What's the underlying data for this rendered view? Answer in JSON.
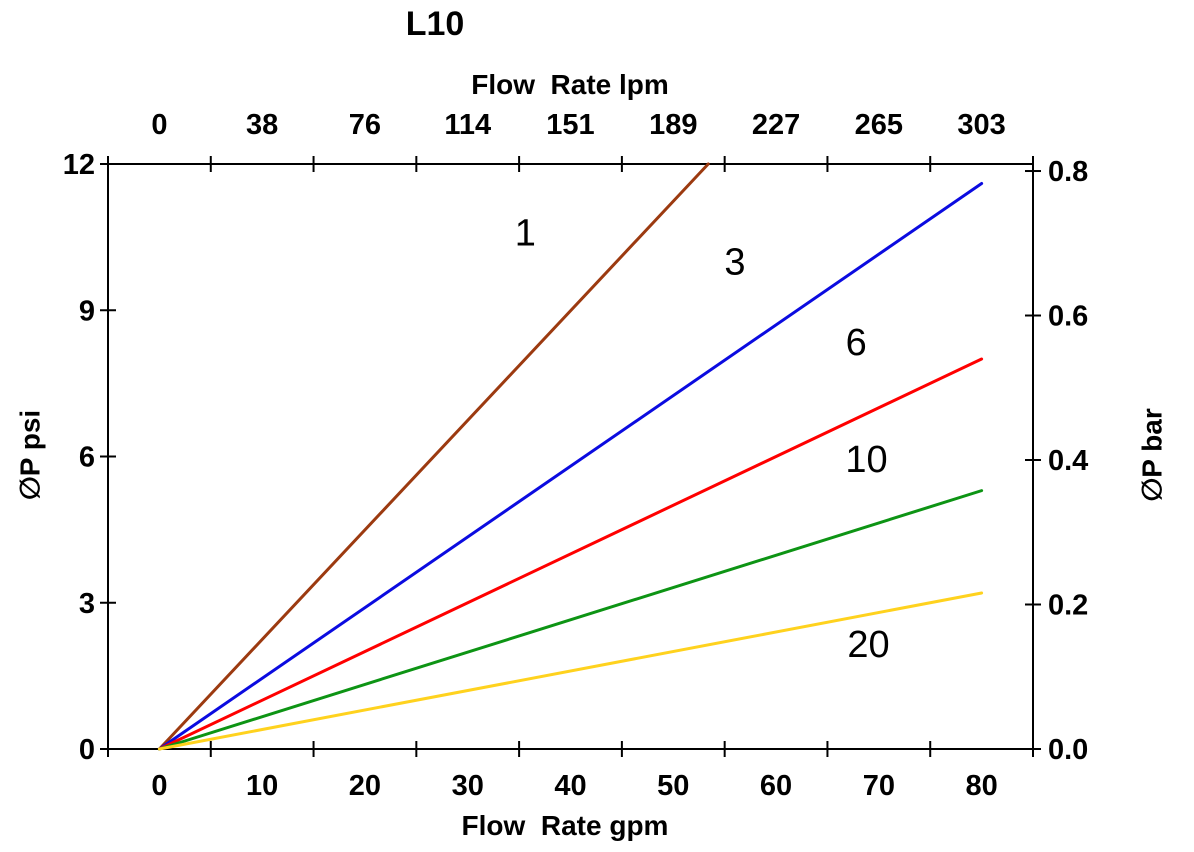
{
  "page": {
    "background": "#ffffff",
    "text_color": "#000000",
    "axis_color": "#000000"
  },
  "chart_data": {
    "type": "line",
    "title": "L10",
    "grid": false,
    "legend": "inline-labels-on-lines",
    "top_axis": {
      "label": "Flow  Rate lpm",
      "unit": "lpm",
      "tick_labels": [
        "0",
        "38",
        "76",
        "114",
        "151",
        "189",
        "227",
        "265",
        "303"
      ],
      "tick_label_positions_gpm": [
        0,
        10,
        20,
        30,
        40,
        50,
        60,
        70,
        80
      ],
      "tick_mark_positions_gpm": [
        -5,
        5,
        15,
        25,
        35,
        45,
        55,
        65,
        75,
        85
      ]
    },
    "bottom_axis": {
      "label": "Flow  Rate gpm",
      "unit": "gpm",
      "tick_labels": [
        "0",
        "10",
        "20",
        "30",
        "40",
        "50",
        "60",
        "70",
        "80"
      ],
      "tick_label_positions_gpm": [
        0,
        10,
        20,
        30,
        40,
        50,
        60,
        70,
        80
      ],
      "tick_mark_positions_gpm": [
        -5,
        5,
        15,
        25,
        35,
        45,
        55,
        65,
        75,
        85
      ],
      "range_gpm": [
        -5,
        85
      ]
    },
    "left_axis": {
      "label": "∅P psi",
      "unit": "psi",
      "tick_labels": [
        "0",
        "3",
        "6",
        "9",
        "12"
      ],
      "tick_values_psi": [
        0,
        3,
        6,
        9,
        12
      ],
      "range_psi": [
        0,
        12
      ]
    },
    "right_axis": {
      "label": "∅P bar",
      "unit": "bar",
      "tick_labels": [
        "0.0",
        "0.2",
        "0.4",
        "0.6",
        "0.8"
      ],
      "tick_values_bar": [
        0.0,
        0.2,
        0.4,
        0.6,
        0.8
      ],
      "psi_per_bar": 14.82
    },
    "series": [
      {
        "name": "1",
        "color": "#9C3A10",
        "points_gpm_psi": [
          [
            0,
            0
          ],
          [
            53.4,
            12.0
          ]
        ],
        "slope_psi_per_gpm": 0.225,
        "label_at_gpm_psi": [
          35.6,
          10.6
        ]
      },
      {
        "name": "3",
        "color": "#0B0BE0",
        "points_gpm_psi": [
          [
            0,
            0
          ],
          [
            80.0,
            11.6
          ]
        ],
        "slope_psi_per_gpm": 0.145,
        "label_at_gpm_psi": [
          56.0,
          10.0
        ]
      },
      {
        "name": "6",
        "color": "#FF0000",
        "points_gpm_psi": [
          [
            0,
            0
          ],
          [
            80.0,
            8.0
          ]
        ],
        "slope_psi_per_gpm": 0.1,
        "label_at_gpm_psi": [
          67.8,
          8.35
        ]
      },
      {
        "name": "10",
        "color": "#0D9414",
        "points_gpm_psi": [
          [
            0,
            0
          ],
          [
            80.0,
            5.3
          ]
        ],
        "slope_psi_per_gpm": 0.066,
        "label_at_gpm_psi": [
          68.8,
          5.95
        ]
      },
      {
        "name": "20",
        "color": "#FFD21E",
        "points_gpm_psi": [
          [
            0,
            0
          ],
          [
            80.0,
            3.2
          ]
        ],
        "slope_psi_per_gpm": 0.04,
        "label_at_gpm_psi": [
          69.0,
          2.15
        ]
      }
    ]
  }
}
